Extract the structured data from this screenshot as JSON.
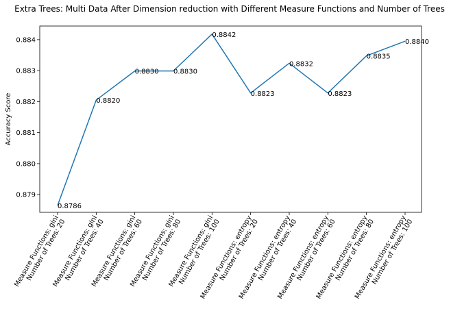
{
  "chart_data": {
    "type": "line",
    "title": "Extra Trees: Multi Data After Dimension reduction with Different Measure Functions and Number of Trees",
    "xlabel": "",
    "ylabel": "Accuracy Score",
    "categories": [
      [
        "Measure Functions: gini",
        "Number of Trees: 20"
      ],
      [
        "Measure Functions: gini",
        "Number of Trees: 40"
      ],
      [
        "Measure Functions: gini",
        "Number of Trees: 60"
      ],
      [
        "Measure Functions: gini",
        "Number of Trees: 80"
      ],
      [
        "Measure Functions: gini",
        "Number of Trees: 100"
      ],
      [
        "Measure Functions: entropy",
        "Number of Trees: 20"
      ],
      [
        "Measure Functions: entropy",
        "Number of Trees: 40"
      ],
      [
        "Measure Functions: entropy",
        "Number of Trees: 60"
      ],
      [
        "Measure Functions: entropy",
        "Number of Trees: 80"
      ],
      [
        "Measure Functions: entropy",
        "Number of Trees: 100"
      ]
    ],
    "series": [
      {
        "values": [
          0.87865,
          0.88205,
          0.88299,
          0.88299,
          0.88418,
          0.88228,
          0.88324,
          0.88228,
          0.88348,
          0.88395
        ],
        "data_labels": [
          "0.8786",
          "0.8820",
          "0.8830",
          "0.8830",
          "0.8842",
          "0.8823",
          "0.8832",
          "0.8823",
          "0.8835",
          "0.8840"
        ],
        "color": "#1f77b4"
      }
    ],
    "yticks": [
      0.879,
      0.88,
      0.881,
      0.882,
      0.883,
      0.884
    ],
    "ytick_labels": [
      "0.879",
      "0.880",
      "0.881",
      "0.882",
      "0.883",
      "0.884"
    ],
    "ylim": [
      0.87843,
      0.88444
    ],
    "grid": false,
    "legend": "none"
  }
}
